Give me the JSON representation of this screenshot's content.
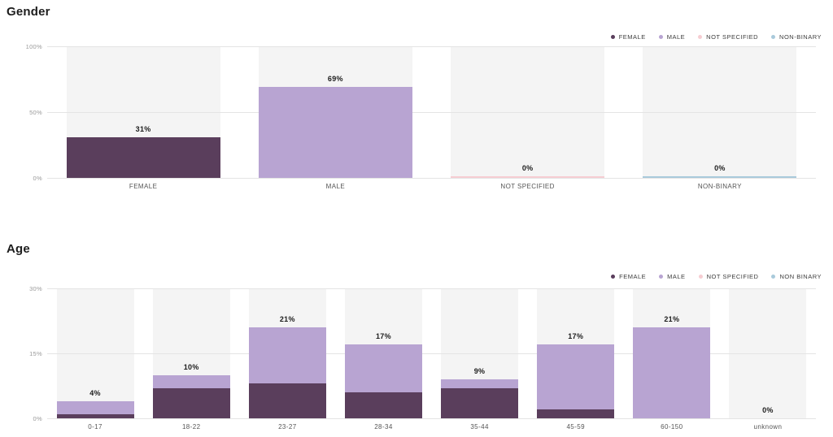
{
  "colors": {
    "female": "#5a3e5c",
    "male": "#b8a4d2",
    "not_specified": "#f6cdd2",
    "non_binary": "#a9cadb",
    "band": "#f4f4f4",
    "gridline": "#e4e4e4"
  },
  "chart_data": [
    {
      "type": "bar",
      "title": "Gender",
      "categories": [
        "FEMALE",
        "MALE",
        "NOT SPECIFIED",
        "NON-BINARY"
      ],
      "values": [
        31,
        69,
        0,
        0
      ],
      "value_labels": [
        "31%",
        "69%",
        "0%",
        "0%"
      ],
      "bar_color_keys": [
        "female",
        "male",
        "not_specified",
        "non_binary"
      ],
      "xlabel": "",
      "ylabel": "",
      "ylim": [
        0,
        100
      ],
      "y_ticks": [
        {
          "value": 0,
          "label": "0%"
        },
        {
          "value": 50,
          "label": "50%"
        },
        {
          "value": 100,
          "label": "100%"
        }
      ],
      "grid": true,
      "zero_bar_style": "thin-line",
      "legend": {
        "position": "top-right",
        "items": [
          {
            "label": "FEMALE",
            "color_key": "female"
          },
          {
            "label": "MALE",
            "color_key": "male"
          },
          {
            "label": "NOT SPECIFIED",
            "color_key": "not_specified"
          },
          {
            "label": "NON-BINARY",
            "color_key": "non_binary"
          }
        ]
      }
    },
    {
      "type": "stacked-bar",
      "title": "Age",
      "categories": [
        "0-17",
        "18-22",
        "23-27",
        "28-34",
        "35-44",
        "45-59",
        "60-150",
        "unknown"
      ],
      "series": [
        {
          "name": "FEMALE",
          "color_key": "female",
          "values": [
            1,
            7,
            8,
            6,
            7,
            2,
            0,
            0
          ]
        },
        {
          "name": "MALE",
          "color_key": "male",
          "values": [
            3,
            3,
            13,
            11,
            2,
            15,
            21,
            0
          ]
        }
      ],
      "total_labels": [
        "4%",
        "10%",
        "21%",
        "17%",
        "9%",
        "17%",
        "21%",
        "0%"
      ],
      "xlabel": "",
      "ylabel": "",
      "ylim": [
        0,
        30
      ],
      "y_ticks": [
        {
          "value": 0,
          "label": "0%"
        },
        {
          "value": 15,
          "label": "15%"
        },
        {
          "value": 30,
          "label": "30%"
        }
      ],
      "grid": true,
      "zero_bar_style": "none",
      "legend": {
        "position": "top-right",
        "items": [
          {
            "label": "FEMALE",
            "color_key": "female"
          },
          {
            "label": "MALE",
            "color_key": "male"
          },
          {
            "label": "NOT SPECIFIED",
            "color_key": "not_specified"
          },
          {
            "label": "NON BINARY",
            "color_key": "non_binary"
          }
        ]
      }
    }
  ]
}
